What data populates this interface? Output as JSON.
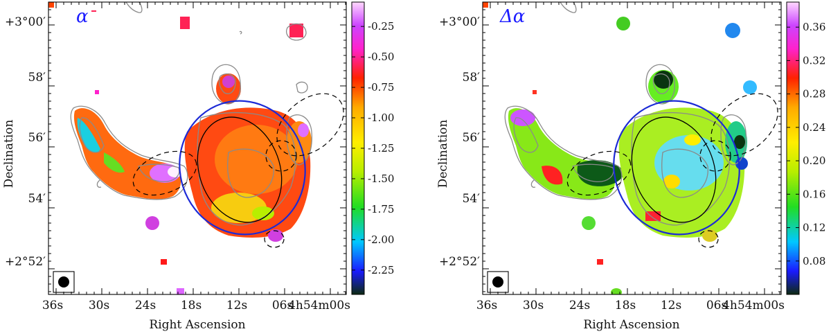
{
  "chart_data": [
    {
      "type": "heatmap",
      "title": "",
      "panel_label": "α",
      "xlabel": "Right Ascension",
      "ylabel": "Declination",
      "x_ticks": [
        "36s",
        "30s",
        "24s",
        "18s",
        "12s",
        "06s",
        "4h54m00s"
      ],
      "y_ticks": [
        "+3°00′",
        "58′",
        "56′",
        "54′",
        "+2°52′"
      ],
      "colorbar": {
        "ticks": [
          "-0.25",
          "-0.50",
          "-0.75",
          "-1.00",
          "-1.25",
          "-1.50",
          "-1.75",
          "-2.00",
          "-2.25"
        ],
        "range": [
          -2.45,
          -0.05
        ]
      },
      "features": {
        "contours": "grey radio contours",
        "regions": [
          "blue ellipse",
          "black ellipse",
          "dashed ellipses"
        ],
        "beam": "filled circle in box (bottom-left)"
      }
    },
    {
      "type": "heatmap",
      "title": "",
      "panel_label": "Δα",
      "xlabel": "Right Ascension",
      "ylabel": "Declination",
      "x_ticks": [
        "36s",
        "30s",
        "24s",
        "18s",
        "12s",
        "06s",
        "4h54m00s"
      ],
      "y_ticks": [
        "+3°00′",
        "58′",
        "56′",
        "54′",
        "+2°52′"
      ],
      "colorbar": {
        "ticks": [
          "0.36",
          "0.32",
          "0.28",
          "0.24",
          "0.20",
          "0.16",
          "0.12",
          "0.08"
        ],
        "range": [
          0.04,
          0.39
        ]
      },
      "features": {
        "contours": "grey radio contours",
        "regions": [
          "blue ellipse",
          "black ellipse",
          "dashed ellipses"
        ],
        "beam": "filled circle in box (bottom-left)"
      }
    }
  ]
}
